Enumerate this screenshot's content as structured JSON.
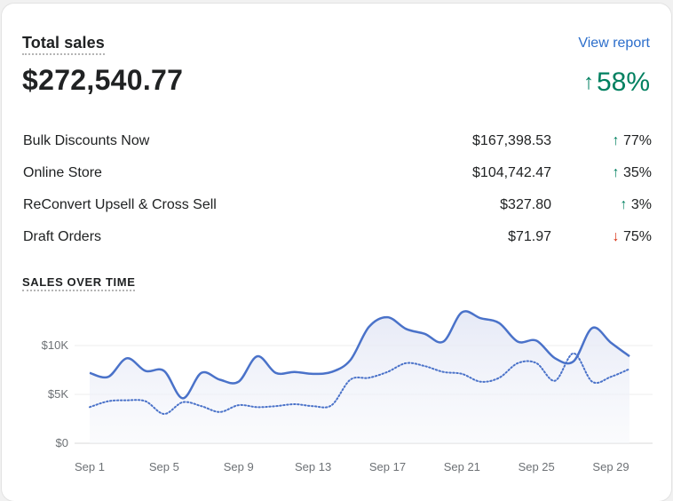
{
  "header": {
    "title": "Total sales",
    "total": "$272,540.77",
    "view_report": "View report",
    "growth": "58%",
    "growth_arrow": "↑"
  },
  "breakdown": [
    {
      "name": "Bulk Discounts Now",
      "amount": "$167,398.53",
      "arrow": "↑",
      "direction": "up",
      "pct": "77%"
    },
    {
      "name": "Online Store",
      "amount": "$104,742.47",
      "arrow": "↑",
      "direction": "up",
      "pct": "35%"
    },
    {
      "name": "ReConvert Upsell & Cross Sell",
      "amount": "$327.80",
      "arrow": "↑",
      "direction": "up",
      "pct": "3%"
    },
    {
      "name": "Draft Orders",
      "amount": "$71.97",
      "arrow": "↓",
      "direction": "down",
      "pct": "75%"
    }
  ],
  "chart_section": {
    "title": "SALES OVER TIME"
  },
  "colors": {
    "accent": "#2c6ecb",
    "line": "#4a72c9",
    "up": "#008060",
    "down": "#d72c0d"
  },
  "chart_data": {
    "type": "line",
    "x": [
      "Sep 1",
      "Sep 2",
      "Sep 3",
      "Sep 4",
      "Sep 5",
      "Sep 6",
      "Sep 7",
      "Sep 8",
      "Sep 9",
      "Sep 10",
      "Sep 11",
      "Sep 12",
      "Sep 13",
      "Sep 14",
      "Sep 15",
      "Sep 16",
      "Sep 17",
      "Sep 18",
      "Sep 19",
      "Sep 20",
      "Sep 21",
      "Sep 22",
      "Sep 23",
      "Sep 24",
      "Sep 25",
      "Sep 26",
      "Sep 27",
      "Sep 28",
      "Sep 29",
      "Sep 30"
    ],
    "xticks": [
      "Sep 1",
      "Sep 5",
      "Sep 9",
      "Sep 13",
      "Sep 17",
      "Sep 21",
      "Sep 25",
      "Sep 29"
    ],
    "yticks": [
      "$0",
      "$5K",
      "$10K"
    ],
    "ylim": [
      0,
      14000
    ],
    "series": [
      {
        "style": "solid",
        "values": [
          7200,
          6800,
          8700,
          7400,
          7400,
          4600,
          7200,
          6500,
          6300,
          8900,
          7200,
          7300,
          7100,
          7300,
          8500,
          11900,
          12900,
          11700,
          11200,
          10400,
          13400,
          12800,
          12300,
          10400,
          10500,
          8700,
          8400,
          11800,
          10300,
          8900
        ]
      },
      {
        "style": "dotted",
        "values": [
          3700,
          4300,
          4400,
          4300,
          3000,
          4200,
          3800,
          3200,
          3900,
          3700,
          3800,
          4000,
          3800,
          3900,
          6500,
          6700,
          7300,
          8200,
          7900,
          7300,
          7100,
          6300,
          6700,
          8200,
          8200,
          6400,
          9200,
          6300,
          6800,
          7600
        ]
      }
    ]
  }
}
